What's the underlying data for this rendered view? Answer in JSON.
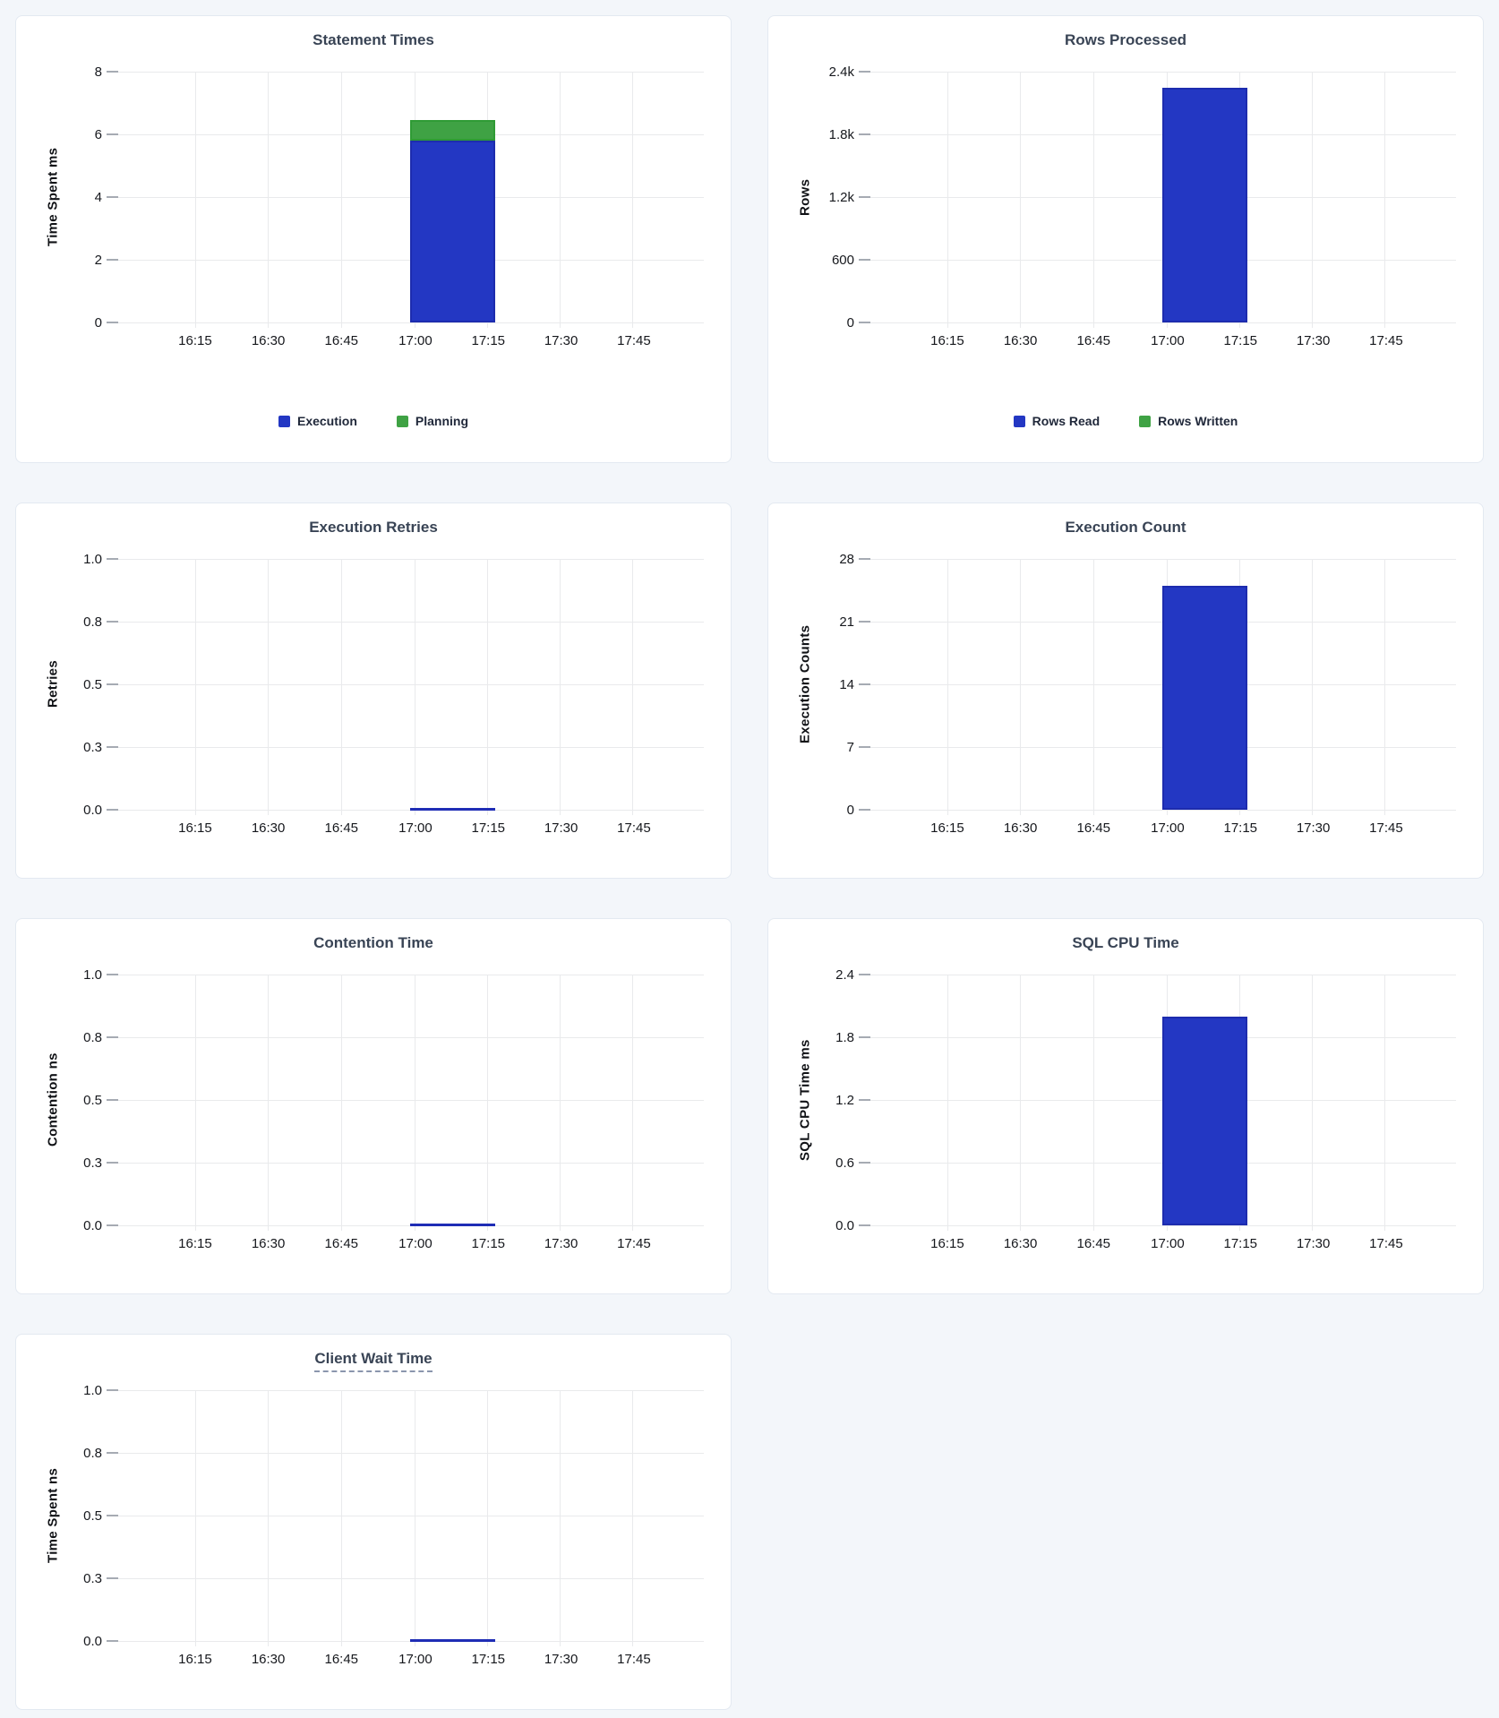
{
  "page": {
    "bg": "#f3f6fa"
  },
  "card": {
    "bg": "#ffffff",
    "border": "#e3e9f1"
  },
  "palette": {
    "blue": "#2337c3",
    "blue_border": "#1d2cae",
    "green": "#3fa244",
    "green_border": "#2f9b35",
    "zero_line": "#1f2db5",
    "title": "#394455",
    "tick": "#16181d",
    "grid": "#e9eaec",
    "ytick_mark": "#a6abb3"
  },
  "x_ticks": [
    "16:15",
    "16:30",
    "16:45",
    "17:00",
    "17:15",
    "17:30",
    "17:45"
  ],
  "bucket": "17:00-17:15",
  "charts": [
    {
      "title": "Statement Times",
      "ylabel": "Time Spent ms",
      "yticks": [
        "8",
        "6",
        "4",
        "2",
        "0"
      ],
      "ymax": 8,
      "underline": false,
      "legend": [
        {
          "label": "Execution",
          "color": "blue"
        },
        {
          "label": "Planning",
          "color": "green"
        }
      ],
      "series": [
        {
          "name": "Execution",
          "color": "blue",
          "value": 5.8
        },
        {
          "name": "Planning",
          "color": "green",
          "value": 0.65
        }
      ]
    },
    {
      "title": "Rows Processed",
      "ylabel": "Rows",
      "yticks": [
        "2.4k",
        "1.8k",
        "1.2k",
        "600",
        "0"
      ],
      "ymax": 2400,
      "underline": false,
      "legend": [
        {
          "label": "Rows Read",
          "color": "blue"
        },
        {
          "label": "Rows Written",
          "color": "green"
        }
      ],
      "series": [
        {
          "name": "Rows Read",
          "color": "blue",
          "value": 2250
        },
        {
          "name": "Rows Written",
          "color": "green",
          "value": 0
        }
      ]
    },
    {
      "title": "Execution Retries",
      "ylabel": "Retries",
      "yticks": [
        "1.0",
        "0.8",
        "0.5",
        "0.3",
        "0.0"
      ],
      "ymax": 1,
      "underline": false,
      "series": [
        {
          "name": "Retries",
          "color": "blue",
          "value": 0
        }
      ]
    },
    {
      "title": "Execution Count",
      "ylabel": "Execution Counts",
      "yticks": [
        "28",
        "21",
        "14",
        "7",
        "0"
      ],
      "ymax": 28,
      "underline": false,
      "series": [
        {
          "name": "Execution Count",
          "color": "blue",
          "value": 25
        }
      ]
    },
    {
      "title": "Contention Time",
      "ylabel": "Contention ns",
      "yticks": [
        "1.0",
        "0.8",
        "0.5",
        "0.3",
        "0.0"
      ],
      "ymax": 1,
      "underline": false,
      "series": [
        {
          "name": "Contention",
          "color": "blue",
          "value": 0
        }
      ]
    },
    {
      "title": "SQL CPU Time",
      "ylabel": "SQL CPU Time ms",
      "yticks": [
        "2.4",
        "1.8",
        "1.2",
        "0.6",
        "0.0"
      ],
      "ymax": 2.4,
      "underline": false,
      "series": [
        {
          "name": "SQL CPU Time",
          "color": "blue",
          "value": 2.0
        }
      ]
    },
    {
      "title": "Client Wait Time",
      "ylabel": "Time Spent ns",
      "yticks": [
        "1.0",
        "0.8",
        "0.5",
        "0.3",
        "0.0"
      ],
      "ymax": 1,
      "underline": true,
      "series": [
        {
          "name": "Client Wait Time",
          "color": "blue",
          "value": 0
        }
      ]
    }
  ],
  "chart_data": [
    {
      "type": "bar",
      "title": "Statement Times",
      "xlabel": "",
      "ylabel": "Time Spent ms",
      "categories": [
        "16:15",
        "16:30",
        "16:45",
        "17:00",
        "17:15",
        "17:30",
        "17:45"
      ],
      "ylim": [
        0,
        8
      ],
      "grid": true,
      "stacked": true,
      "legend_position": "bottom",
      "series": [
        {
          "name": "Execution",
          "color": "#2337c3",
          "data": [
            {
              "x": "17:00-17:15",
              "y": 5.8
            }
          ]
        },
        {
          "name": "Planning",
          "color": "#3fa244",
          "data": [
            {
              "x": "17:00-17:15",
              "y": 0.65
            }
          ]
        }
      ]
    },
    {
      "type": "bar",
      "title": "Rows Processed",
      "xlabel": "",
      "ylabel": "Rows",
      "categories": [
        "16:15",
        "16:30",
        "16:45",
        "17:00",
        "17:15",
        "17:30",
        "17:45"
      ],
      "ylim": [
        0,
        2400
      ],
      "grid": true,
      "stacked": true,
      "legend_position": "bottom",
      "series": [
        {
          "name": "Rows Read",
          "color": "#2337c3",
          "data": [
            {
              "x": "17:00-17:15",
              "y": 2250
            }
          ]
        },
        {
          "name": "Rows Written",
          "color": "#3fa244",
          "data": [
            {
              "x": "17:00-17:15",
              "y": 0
            }
          ]
        }
      ]
    },
    {
      "type": "bar",
      "title": "Execution Retries",
      "xlabel": "",
      "ylabel": "Retries",
      "categories": [
        "16:15",
        "16:30",
        "16:45",
        "17:00",
        "17:15",
        "17:30",
        "17:45"
      ],
      "ylim": [
        0,
        1
      ],
      "grid": true,
      "legend_position": "none",
      "series": [
        {
          "name": "Retries",
          "color": "#2337c3",
          "data": [
            {
              "x": "17:00-17:15",
              "y": 0
            }
          ]
        }
      ]
    },
    {
      "type": "bar",
      "title": "Execution Count",
      "xlabel": "",
      "ylabel": "Execution Counts",
      "categories": [
        "16:15",
        "16:30",
        "16:45",
        "17:00",
        "17:15",
        "17:30",
        "17:45"
      ],
      "ylim": [
        0,
        28
      ],
      "grid": true,
      "legend_position": "none",
      "series": [
        {
          "name": "Execution Count",
          "color": "#2337c3",
          "data": [
            {
              "x": "17:00-17:15",
              "y": 25
            }
          ]
        }
      ]
    },
    {
      "type": "bar",
      "title": "Contention Time",
      "xlabel": "",
      "ylabel": "Contention ns",
      "categories": [
        "16:15",
        "16:30",
        "16:45",
        "17:00",
        "17:15",
        "17:30",
        "17:45"
      ],
      "ylim": [
        0,
        1
      ],
      "grid": true,
      "legend_position": "none",
      "series": [
        {
          "name": "Contention",
          "color": "#2337c3",
          "data": [
            {
              "x": "17:00-17:15",
              "y": 0
            }
          ]
        }
      ]
    },
    {
      "type": "bar",
      "title": "SQL CPU Time",
      "xlabel": "",
      "ylabel": "SQL CPU Time ms",
      "categories": [
        "16:15",
        "16:30",
        "16:45",
        "17:00",
        "17:15",
        "17:30",
        "17:45"
      ],
      "ylim": [
        0,
        2.4
      ],
      "grid": true,
      "legend_position": "none",
      "series": [
        {
          "name": "SQL CPU Time",
          "color": "#2337c3",
          "data": [
            {
              "x": "17:00-17:15",
              "y": 2.0
            }
          ]
        }
      ]
    },
    {
      "type": "bar",
      "title": "Client Wait Time",
      "xlabel": "",
      "ylabel": "Time Spent ns",
      "categories": [
        "16:15",
        "16:30",
        "16:45",
        "17:00",
        "17:15",
        "17:30",
        "17:45"
      ],
      "ylim": [
        0,
        1
      ],
      "grid": true,
      "legend_position": "none",
      "series": [
        {
          "name": "Client Wait Time",
          "color": "#2337c3",
          "data": [
            {
              "x": "17:00-17:15",
              "y": 0
            }
          ]
        }
      ]
    }
  ]
}
